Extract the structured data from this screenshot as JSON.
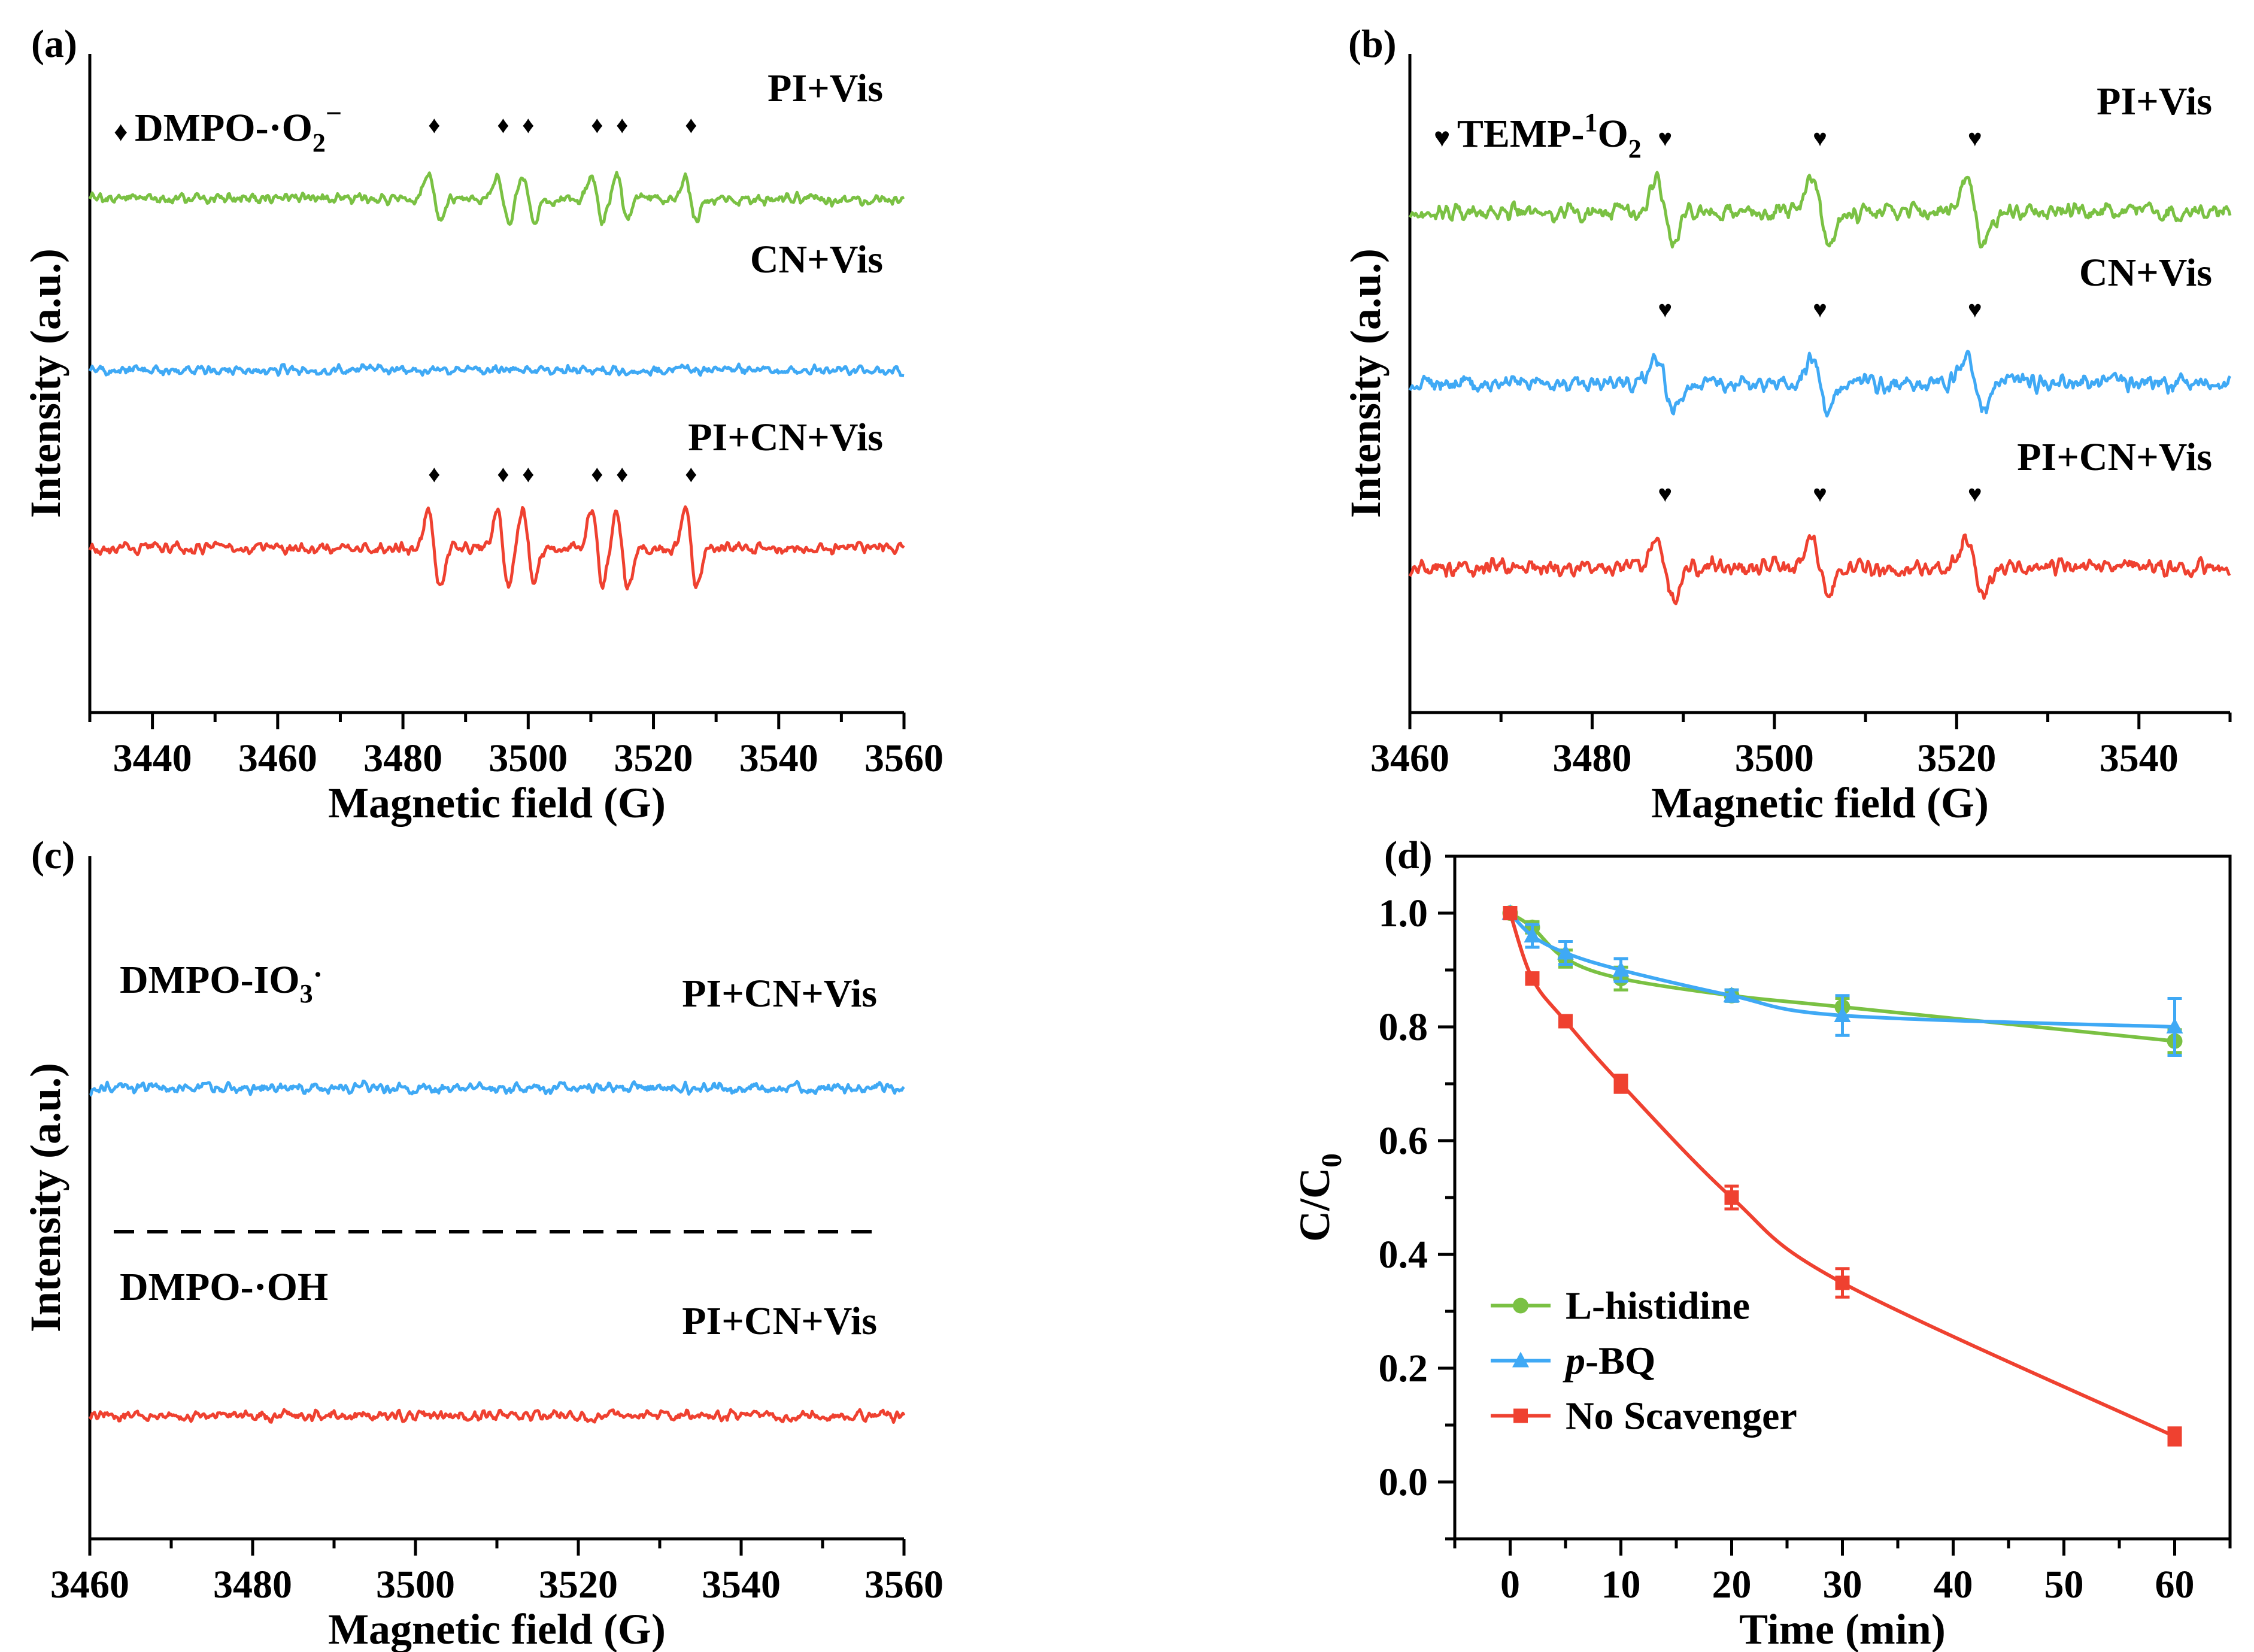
{
  "colors": {
    "green": "#7ac143",
    "blue": "#3fa9f5",
    "red": "#ef4130",
    "black": "#000000"
  },
  "chart_data": [
    {
      "panel": "(a)",
      "type": "line",
      "title": "",
      "xlabel": "Magnetic field (G)",
      "ylabel": "Intensity (a.u.)",
      "xlim": [
        3430,
        3560
      ],
      "xticks": [
        3440,
        3460,
        3480,
        3500,
        3520,
        3540,
        3560
      ],
      "marker_legend": {
        "symbol": "♦",
        "prefix": "DMPO-·O",
        "sub": "2",
        "sup": "−"
      },
      "series": [
        {
          "name": "PI+Vis",
          "color": "#7ac143",
          "offset": 0.78,
          "noise": 0.012,
          "peaks": [
            3485,
            3496,
            3500,
            3511,
            3515,
            3526
          ],
          "amp": 0.035,
          "marks": [
            3485,
            3496,
            3500,
            3511,
            3515,
            3526
          ]
        },
        {
          "name": "CN+Vis",
          "color": "#3fa9f5",
          "offset": 0.52,
          "noise": 0.01,
          "peaks": [],
          "amp": 0,
          "marks": []
        },
        {
          "name": "PI+CN+Vis",
          "color": "#ef4130",
          "offset": 0.25,
          "noise": 0.012,
          "peaks": [
            3485,
            3496,
            3500,
            3511,
            3515,
            3526
          ],
          "amp": 0.06,
          "marks": [
            3485,
            3496,
            3500,
            3511,
            3515,
            3526
          ]
        }
      ]
    },
    {
      "panel": "(b)",
      "type": "line",
      "title": "",
      "xlabel": "Magnetic field (G)",
      "ylabel": "Intensity (a.u.)",
      "xlim": [
        3460,
        3550
      ],
      "xticks": [
        3460,
        3480,
        3500,
        3520,
        3540
      ],
      "marker_legend": {
        "symbol": "♥",
        "prefix": "TEMP-",
        "sup": "1",
        "suffix": "O",
        "sub": "2"
      },
      "series": [
        {
          "name": "PI+Vis",
          "color": "#7ac143",
          "offset": 0.76,
          "noise": 0.018,
          "peaks": [
            3488,
            3505,
            3522
          ],
          "amp": 0.05,
          "marks": [
            3488,
            3505,
            3522
          ]
        },
        {
          "name": "CN+Vis",
          "color": "#3fa9f5",
          "offset": 0.5,
          "noise": 0.018,
          "peaks": [
            3488,
            3505,
            3522
          ],
          "amp": 0.04,
          "marks": [
            3488,
            3505,
            3522
          ]
        },
        {
          "name": "PI+CN+Vis",
          "color": "#ef4130",
          "offset": 0.22,
          "noise": 0.018,
          "peaks": [
            3488,
            3505,
            3522
          ],
          "amp": 0.045,
          "marks": [
            3488,
            3505,
            3522
          ]
        }
      ]
    },
    {
      "panel": "(c)",
      "type": "line",
      "title": "",
      "xlabel": "Magnetic field (G)",
      "ylabel": "Intensity (a.u.)",
      "xlim": [
        3460,
        3560
      ],
      "xticks": [
        3460,
        3480,
        3500,
        3520,
        3540,
        3560
      ],
      "series": [
        {
          "name": "PI+CN+Vis",
          "label": "DMPO-IO",
          "sub": "3",
          "sup": "·",
          "color": "#3fa9f5",
          "offset": 0.66,
          "noise": 0.011,
          "peaks": [],
          "amp": 0,
          "marks": []
        },
        {
          "name": "PI+CN+Vis",
          "label": "DMPO-·OH",
          "color": "#ef4130",
          "offset": 0.18,
          "noise": 0.011,
          "peaks": [],
          "amp": 0,
          "marks": []
        }
      ],
      "divider_y": 0.45
    },
    {
      "panel": "(d)",
      "type": "line",
      "title": "",
      "xlabel": "Time (min)",
      "ylabel": "C/C",
      "ylabel_sub": "0",
      "xlim": [
        -5,
        65
      ],
      "ylim": [
        -0.1,
        1.1
      ],
      "xticks": [
        0,
        10,
        20,
        30,
        40,
        50,
        60
      ],
      "yticks": [
        0.0,
        0.2,
        0.4,
        0.6,
        0.8,
        1.0
      ],
      "ytick_labels": [
        "0.0",
        "0.2",
        "0.4",
        "0.6",
        "0.8",
        "1.0"
      ],
      "series": [
        {
          "name": "L-histidine",
          "marker": "circle",
          "color": "#7ac143",
          "x": [
            0,
            2,
            5,
            10,
            20,
            30,
            60
          ],
          "y": [
            1.0,
            0.975,
            0.92,
            0.885,
            0.855,
            0.835,
            0.775
          ],
          "err": [
            0.01,
            0.01,
            0.015,
            0.02,
            0.01,
            0.015,
            0.02
          ]
        },
        {
          "name": "p-BQ",
          "italic_prefix": "p",
          "rest": "-BQ",
          "marker": "triangle",
          "color": "#3fa9f5",
          "x": [
            0,
            2,
            5,
            10,
            20,
            30,
            60
          ],
          "y": [
            1.0,
            0.96,
            0.93,
            0.9,
            0.855,
            0.82,
            0.8
          ],
          "err": [
            0.01,
            0.02,
            0.02,
            0.02,
            0.01,
            0.035,
            0.05
          ]
        },
        {
          "name": "No Scavenger",
          "marker": "square",
          "color": "#ef4130",
          "x": [
            0,
            2,
            5,
            10,
            20,
            30,
            60
          ],
          "y": [
            1.0,
            0.885,
            0.81,
            0.7,
            0.5,
            0.35,
            0.08
          ],
          "err": [
            0.01,
            0.01,
            0.01,
            0.015,
            0.02,
            0.025,
            0.015
          ]
        }
      ]
    }
  ]
}
